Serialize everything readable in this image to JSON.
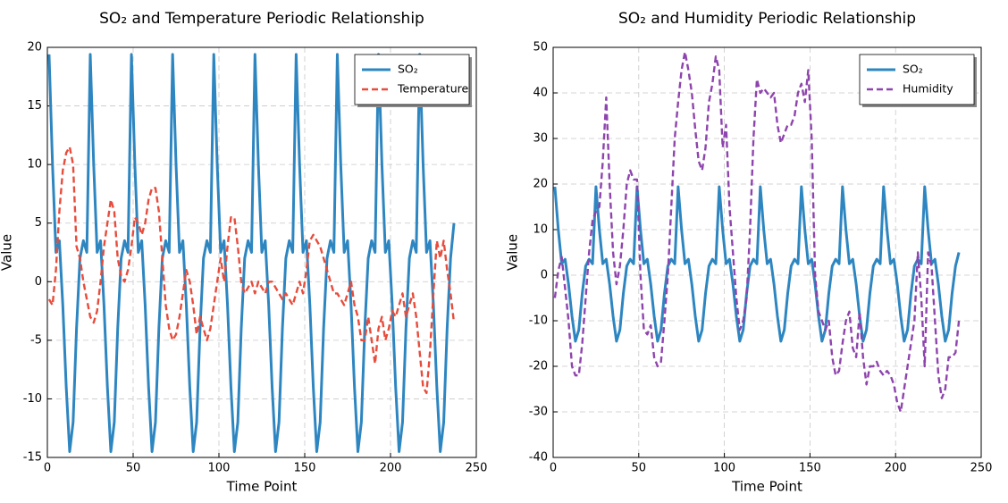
{
  "chart_data": [
    {
      "type": "line",
      "title": "SO₂ and Temperature Periodic Relationship",
      "x_label": "Time Point",
      "y_label": "Value",
      "x": [
        1,
        3,
        5,
        7,
        9,
        11,
        13,
        15,
        17,
        19,
        21,
        23,
        25,
        27,
        29,
        31,
        33,
        35,
        37,
        39,
        41,
        43,
        45,
        47,
        49,
        51,
        53,
        55,
        57,
        59,
        61,
        63,
        65,
        67,
        69,
        71,
        73,
        75,
        77,
        79,
        81,
        83,
        85,
        87,
        89,
        91,
        93,
        95,
        97,
        99,
        101,
        103,
        105,
        107,
        109,
        111,
        113,
        115,
        117,
        119,
        121,
        123,
        125,
        127,
        129,
        131,
        133,
        135,
        137,
        139,
        141,
        143,
        145,
        147,
        149,
        151,
        153,
        155,
        157,
        159,
        161,
        163,
        165,
        167,
        169,
        171,
        173,
        175,
        177,
        179,
        181,
        183,
        185,
        187,
        189,
        191,
        193,
        195,
        197,
        199,
        201,
        203,
        205,
        207,
        209,
        211,
        213,
        215,
        217,
        219,
        221,
        223,
        225,
        227,
        229,
        231,
        233,
        235,
        237
      ],
      "series": [
        {
          "name": "SO₂",
          "color": "#2e86c1",
          "linestyle": "solid",
          "values": [
            19.4,
            10,
            2.5,
            3.5,
            -2,
            -9,
            -14.5,
            -12,
            -4,
            2,
            3.5,
            2.5,
            19.4,
            10,
            2.5,
            3.5,
            -2,
            -9,
            -14.5,
            -12,
            -4,
            2,
            3.5,
            2.5,
            19.4,
            10,
            2.5,
            3.5,
            -2,
            -9,
            -14.5,
            -12,
            -4,
            2,
            3.5,
            2.5,
            19.4,
            10,
            2.5,
            3.5,
            -2,
            -9,
            -14.5,
            -12,
            -4,
            2,
            3.5,
            2.5,
            19.4,
            10,
            2.5,
            3.5,
            -2,
            -9,
            -14.5,
            -12,
            -4,
            2,
            3.5,
            2.5,
            19.4,
            10,
            2.5,
            3.5,
            -2,
            -9,
            -14.5,
            -12,
            -4,
            2,
            3.5,
            2.5,
            19.4,
            10,
            2.5,
            3.5,
            -2,
            -9,
            -14.5,
            -12,
            -4,
            2,
            3.5,
            2.5,
            19.4,
            10,
            2.5,
            3.5,
            -2,
            -9,
            -14.5,
            -12,
            -4,
            2,
            3.5,
            2.5,
            19.4,
            10,
            2.5,
            3.5,
            -2,
            -9,
            -14.5,
            -12,
            -4,
            2,
            3.5,
            2.5,
            19.4,
            10,
            2.5,
            3.5,
            -2,
            -9,
            -14.5,
            -12,
            -4,
            2,
            5
          ]
        },
        {
          "name": "Temperature",
          "color": "#e74c3c",
          "linestyle": "dashed",
          "values": [
            -1.5,
            -2,
            1,
            6,
            9.5,
            11,
            11.5,
            10,
            3,
            2,
            0,
            -1.5,
            -3,
            -3.5,
            -2.5,
            0,
            3,
            5,
            7,
            6,
            2,
            0.5,
            0,
            1,
            3,
            5.5,
            5,
            4,
            5,
            7,
            8,
            8,
            6,
            2,
            -2,
            -4,
            -5,
            -4.5,
            -3,
            -1,
            1,
            0,
            -2,
            -4.5,
            -3,
            -4,
            -5,
            -4,
            -2,
            0,
            2,
            0,
            3,
            5.5,
            5.5,
            3,
            0,
            -1,
            -0.5,
            0,
            -1,
            0,
            -0.5,
            -1,
            0,
            0,
            -0.5,
            -1,
            -1.5,
            -1,
            -1.5,
            -2,
            -1,
            0,
            -1,
            1,
            3.5,
            4,
            3.5,
            3,
            2,
            1,
            0,
            -1,
            -1,
            -1.5,
            -2,
            -1,
            0,
            -2,
            -3,
            -5,
            -5,
            -3,
            -5,
            -7,
            -4,
            -3,
            -5,
            -4,
            -2.5,
            -3,
            -2,
            -1,
            -3,
            -2,
            -1,
            -3,
            -6,
            -9,
            -9.5,
            -6,
            -1,
            3.5,
            2,
            3.5,
            1,
            -1,
            -3.5
          ]
        }
      ],
      "xlim": [
        0,
        250
      ],
      "xticks": [
        0,
        50,
        100,
        150,
        200,
        250
      ],
      "ylim": [
        -15,
        20
      ],
      "yticks": [
        -15,
        -10,
        -5,
        0,
        5,
        10,
        15,
        20
      ],
      "grid": true,
      "legend": "upper right"
    },
    {
      "type": "line",
      "title": "SO₂ and Humidity Periodic Relationship",
      "x_label": "Time Point",
      "y_label": "Value",
      "x": [
        1,
        3,
        5,
        7,
        9,
        11,
        13,
        15,
        17,
        19,
        21,
        23,
        25,
        27,
        29,
        31,
        33,
        35,
        37,
        39,
        41,
        43,
        45,
        47,
        49,
        51,
        53,
        55,
        57,
        59,
        61,
        63,
        65,
        67,
        69,
        71,
        73,
        75,
        77,
        79,
        81,
        83,
        85,
        87,
        89,
        91,
        93,
        95,
        97,
        99,
        101,
        103,
        105,
        107,
        109,
        111,
        113,
        115,
        117,
        119,
        121,
        123,
        125,
        127,
        129,
        131,
        133,
        135,
        137,
        139,
        141,
        143,
        145,
        147,
        149,
        151,
        153,
        155,
        157,
        159,
        161,
        163,
        165,
        167,
        169,
        171,
        173,
        175,
        177,
        179,
        181,
        183,
        185,
        187,
        189,
        191,
        193,
        195,
        197,
        199,
        201,
        203,
        205,
        207,
        209,
        211,
        213,
        215,
        217,
        219,
        221,
        223,
        225,
        227,
        229,
        231,
        233,
        235,
        237
      ],
      "series": [
        {
          "name": "SO₂",
          "color": "#2e86c1",
          "linestyle": "solid",
          "values": [
            19.4,
            10,
            2.5,
            3.5,
            -2,
            -9,
            -14.5,
            -12,
            -4,
            2,
            3.5,
            2.5,
            19.4,
            10,
            2.5,
            3.5,
            -2,
            -9,
            -14.5,
            -12,
            -4,
            2,
            3.5,
            2.5,
            19.4,
            10,
            2.5,
            3.5,
            -2,
            -9,
            -14.5,
            -12,
            -4,
            2,
            3.5,
            2.5,
            19.4,
            10,
            2.5,
            3.5,
            -2,
            -9,
            -14.5,
            -12,
            -4,
            2,
            3.5,
            2.5,
            19.4,
            10,
            2.5,
            3.5,
            -2,
            -9,
            -14.5,
            -12,
            -4,
            2,
            3.5,
            2.5,
            19.4,
            10,
            2.5,
            3.5,
            -2,
            -9,
            -14.5,
            -12,
            -4,
            2,
            3.5,
            2.5,
            19.4,
            10,
            2.5,
            3.5,
            -2,
            -9,
            -14.5,
            -12,
            -4,
            2,
            3.5,
            2.5,
            19.4,
            10,
            2.5,
            3.5,
            -2,
            -9,
            -14.5,
            -12,
            -4,
            2,
            3.5,
            2.5,
            19.4,
            10,
            2.5,
            3.5,
            -2,
            -9,
            -14.5,
            -12,
            -4,
            2,
            3.5,
            2.5,
            19.4,
            10,
            2.5,
            3.5,
            -2,
            -9,
            -14.5,
            -12,
            -4,
            2,
            5
          ]
        },
        {
          "name": "Humidity",
          "color": "#8e44ad",
          "linestyle": "dashed",
          "values": [
            -5,
            1,
            4,
            -3,
            -10,
            -20,
            -22,
            -22,
            -15,
            -5,
            5,
            12,
            14,
            15,
            25,
            39,
            20,
            5,
            -2,
            2,
            10,
            20,
            23,
            21,
            21,
            0,
            -12,
            -13,
            -11,
            -18,
            -20,
            -19,
            -10,
            0,
            15,
            30,
            38,
            45,
            49,
            45,
            40,
            32,
            25,
            23,
            28,
            38,
            42,
            48,
            45,
            28,
            33,
            15,
            5,
            -5,
            -12,
            -10,
            -5,
            10,
            30,
            43,
            40,
            41,
            40,
            39,
            40,
            33,
            29,
            31,
            33,
            33,
            35,
            40,
            42,
            38,
            45,
            30,
            0,
            -8,
            -10,
            -12,
            -10,
            -18,
            -22,
            -21,
            -15,
            -10,
            -8,
            -16,
            -18,
            -8,
            -18,
            -24,
            -20,
            -20,
            -19,
            -21,
            -22,
            -21,
            -22,
            -24,
            -28,
            -30,
            -25,
            -20,
            -15,
            -10,
            5,
            -5,
            -20,
            5,
            2,
            -10,
            -22,
            -27,
            -25,
            -18,
            -18,
            -17,
            -10
          ]
        }
      ],
      "xlim": [
        0,
        250
      ],
      "xticks": [
        0,
        50,
        100,
        150,
        200,
        250
      ],
      "ylim": [
        -40,
        50
      ],
      "yticks": [
        -40,
        -30,
        -20,
        -10,
        0,
        10,
        20,
        30,
        40,
        50
      ],
      "grid": true,
      "legend": "upper right"
    }
  ]
}
